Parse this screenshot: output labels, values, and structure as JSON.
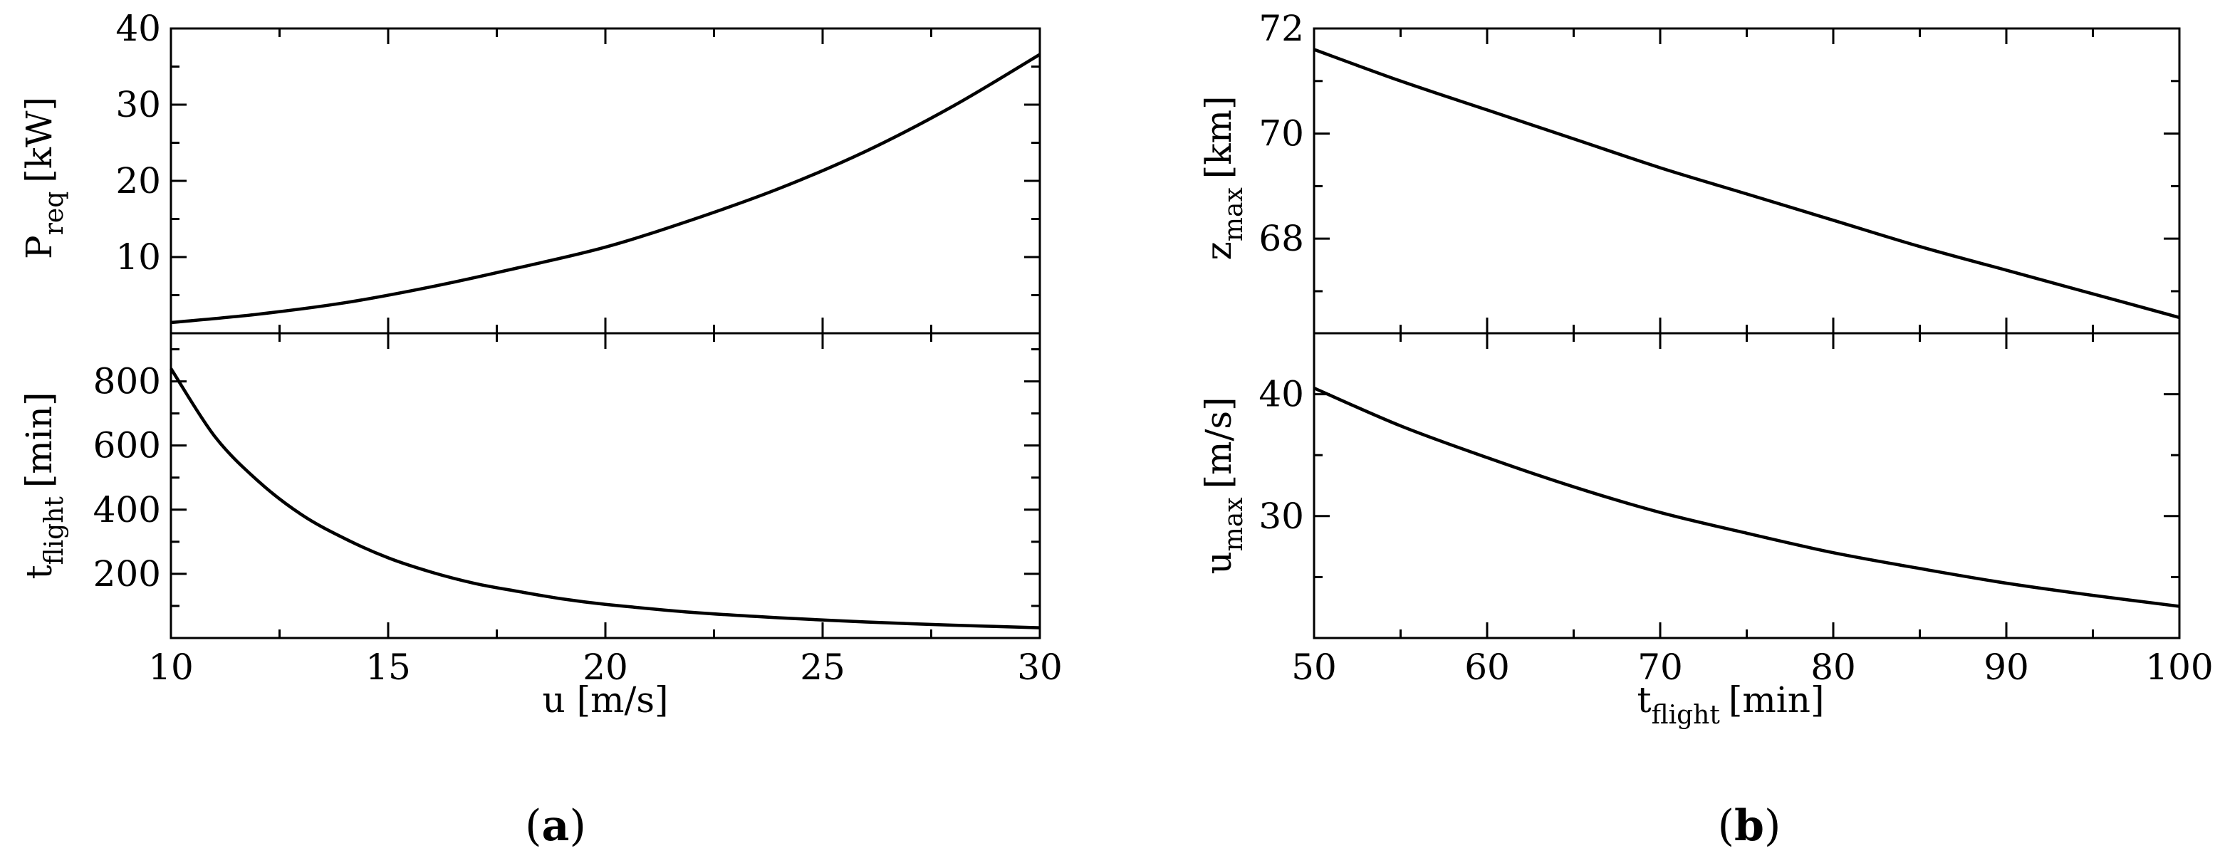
{
  "panel_labels": {
    "a": {
      "open": "(",
      "letter": "a",
      "close": ")"
    },
    "b": {
      "open": "(",
      "letter": "b",
      "close": ")"
    }
  },
  "chart_data": [
    {
      "type": "line",
      "panel": "a-top",
      "ylabel": {
        "main": "P",
        "sub": "req",
        "unit": "[kW]"
      },
      "xlim": [
        10,
        30
      ],
      "ylim": [
        0,
        40
      ],
      "yticks": [
        10,
        20,
        30,
        40
      ],
      "series": [
        {
          "x": [
            10,
            12,
            14,
            16,
            18,
            20,
            22,
            24,
            26,
            28,
            30
          ],
          "values": [
            1.4,
            2.5,
            4.0,
            6.1,
            8.6,
            11.3,
            14.9,
            19.0,
            23.9,
            29.8,
            36.6
          ]
        }
      ]
    },
    {
      "type": "line",
      "panel": "a-bottom",
      "ylabel": {
        "main": "t",
        "sub": "flight",
        "unit": "[min]"
      },
      "xlabel": "u [m/s]",
      "xlim": [
        10,
        30
      ],
      "ylim": [
        0,
        950
      ],
      "xticks": [
        10,
        15,
        20,
        25,
        30
      ],
      "yticks": [
        200,
        400,
        600,
        800
      ],
      "series": [
        {
          "x": [
            10,
            11,
            12,
            13,
            14,
            15,
            16,
            17,
            18,
            19,
            20,
            22,
            24,
            26,
            28,
            30
          ],
          "values": [
            840,
            630,
            490,
            385,
            310,
            250,
            205,
            170,
            145,
            122,
            105,
            80,
            63,
            50,
            40,
            32
          ]
        }
      ]
    },
    {
      "type": "line",
      "panel": "b-top",
      "ylabel": {
        "main": "z",
        "sub": "max",
        "unit": "[km]"
      },
      "xlim": [
        50,
        100
      ],
      "ylim": [
        66.2,
        72
      ],
      "yticks": [
        68,
        70,
        72
      ],
      "series": [
        {
          "x": [
            50,
            55,
            60,
            65,
            70,
            75,
            80,
            85,
            90,
            95,
            100
          ],
          "values": [
            71.6,
            71.0,
            70.45,
            69.9,
            69.35,
            68.85,
            68.35,
            67.85,
            67.4,
            66.95,
            66.5
          ]
        }
      ]
    },
    {
      "type": "line",
      "panel": "b-bottom",
      "ylabel": {
        "main": "u",
        "sub": "max",
        "unit": "[m/s]"
      },
      "xlabel": {
        "main": "t",
        "sub": "flight",
        "unit": "[min]"
      },
      "xlim": [
        50,
        100
      ],
      "ylim": [
        20,
        45
      ],
      "xticks": [
        50,
        60,
        70,
        80,
        90,
        100
      ],
      "yticks": [
        30,
        40
      ],
      "series": [
        {
          "x": [
            50,
            55,
            60,
            65,
            70,
            75,
            80,
            85,
            90,
            95,
            100
          ],
          "values": [
            40.5,
            37.4,
            34.8,
            32.4,
            30.3,
            28.6,
            27.0,
            25.7,
            24.5,
            23.5,
            22.6
          ]
        }
      ]
    }
  ]
}
